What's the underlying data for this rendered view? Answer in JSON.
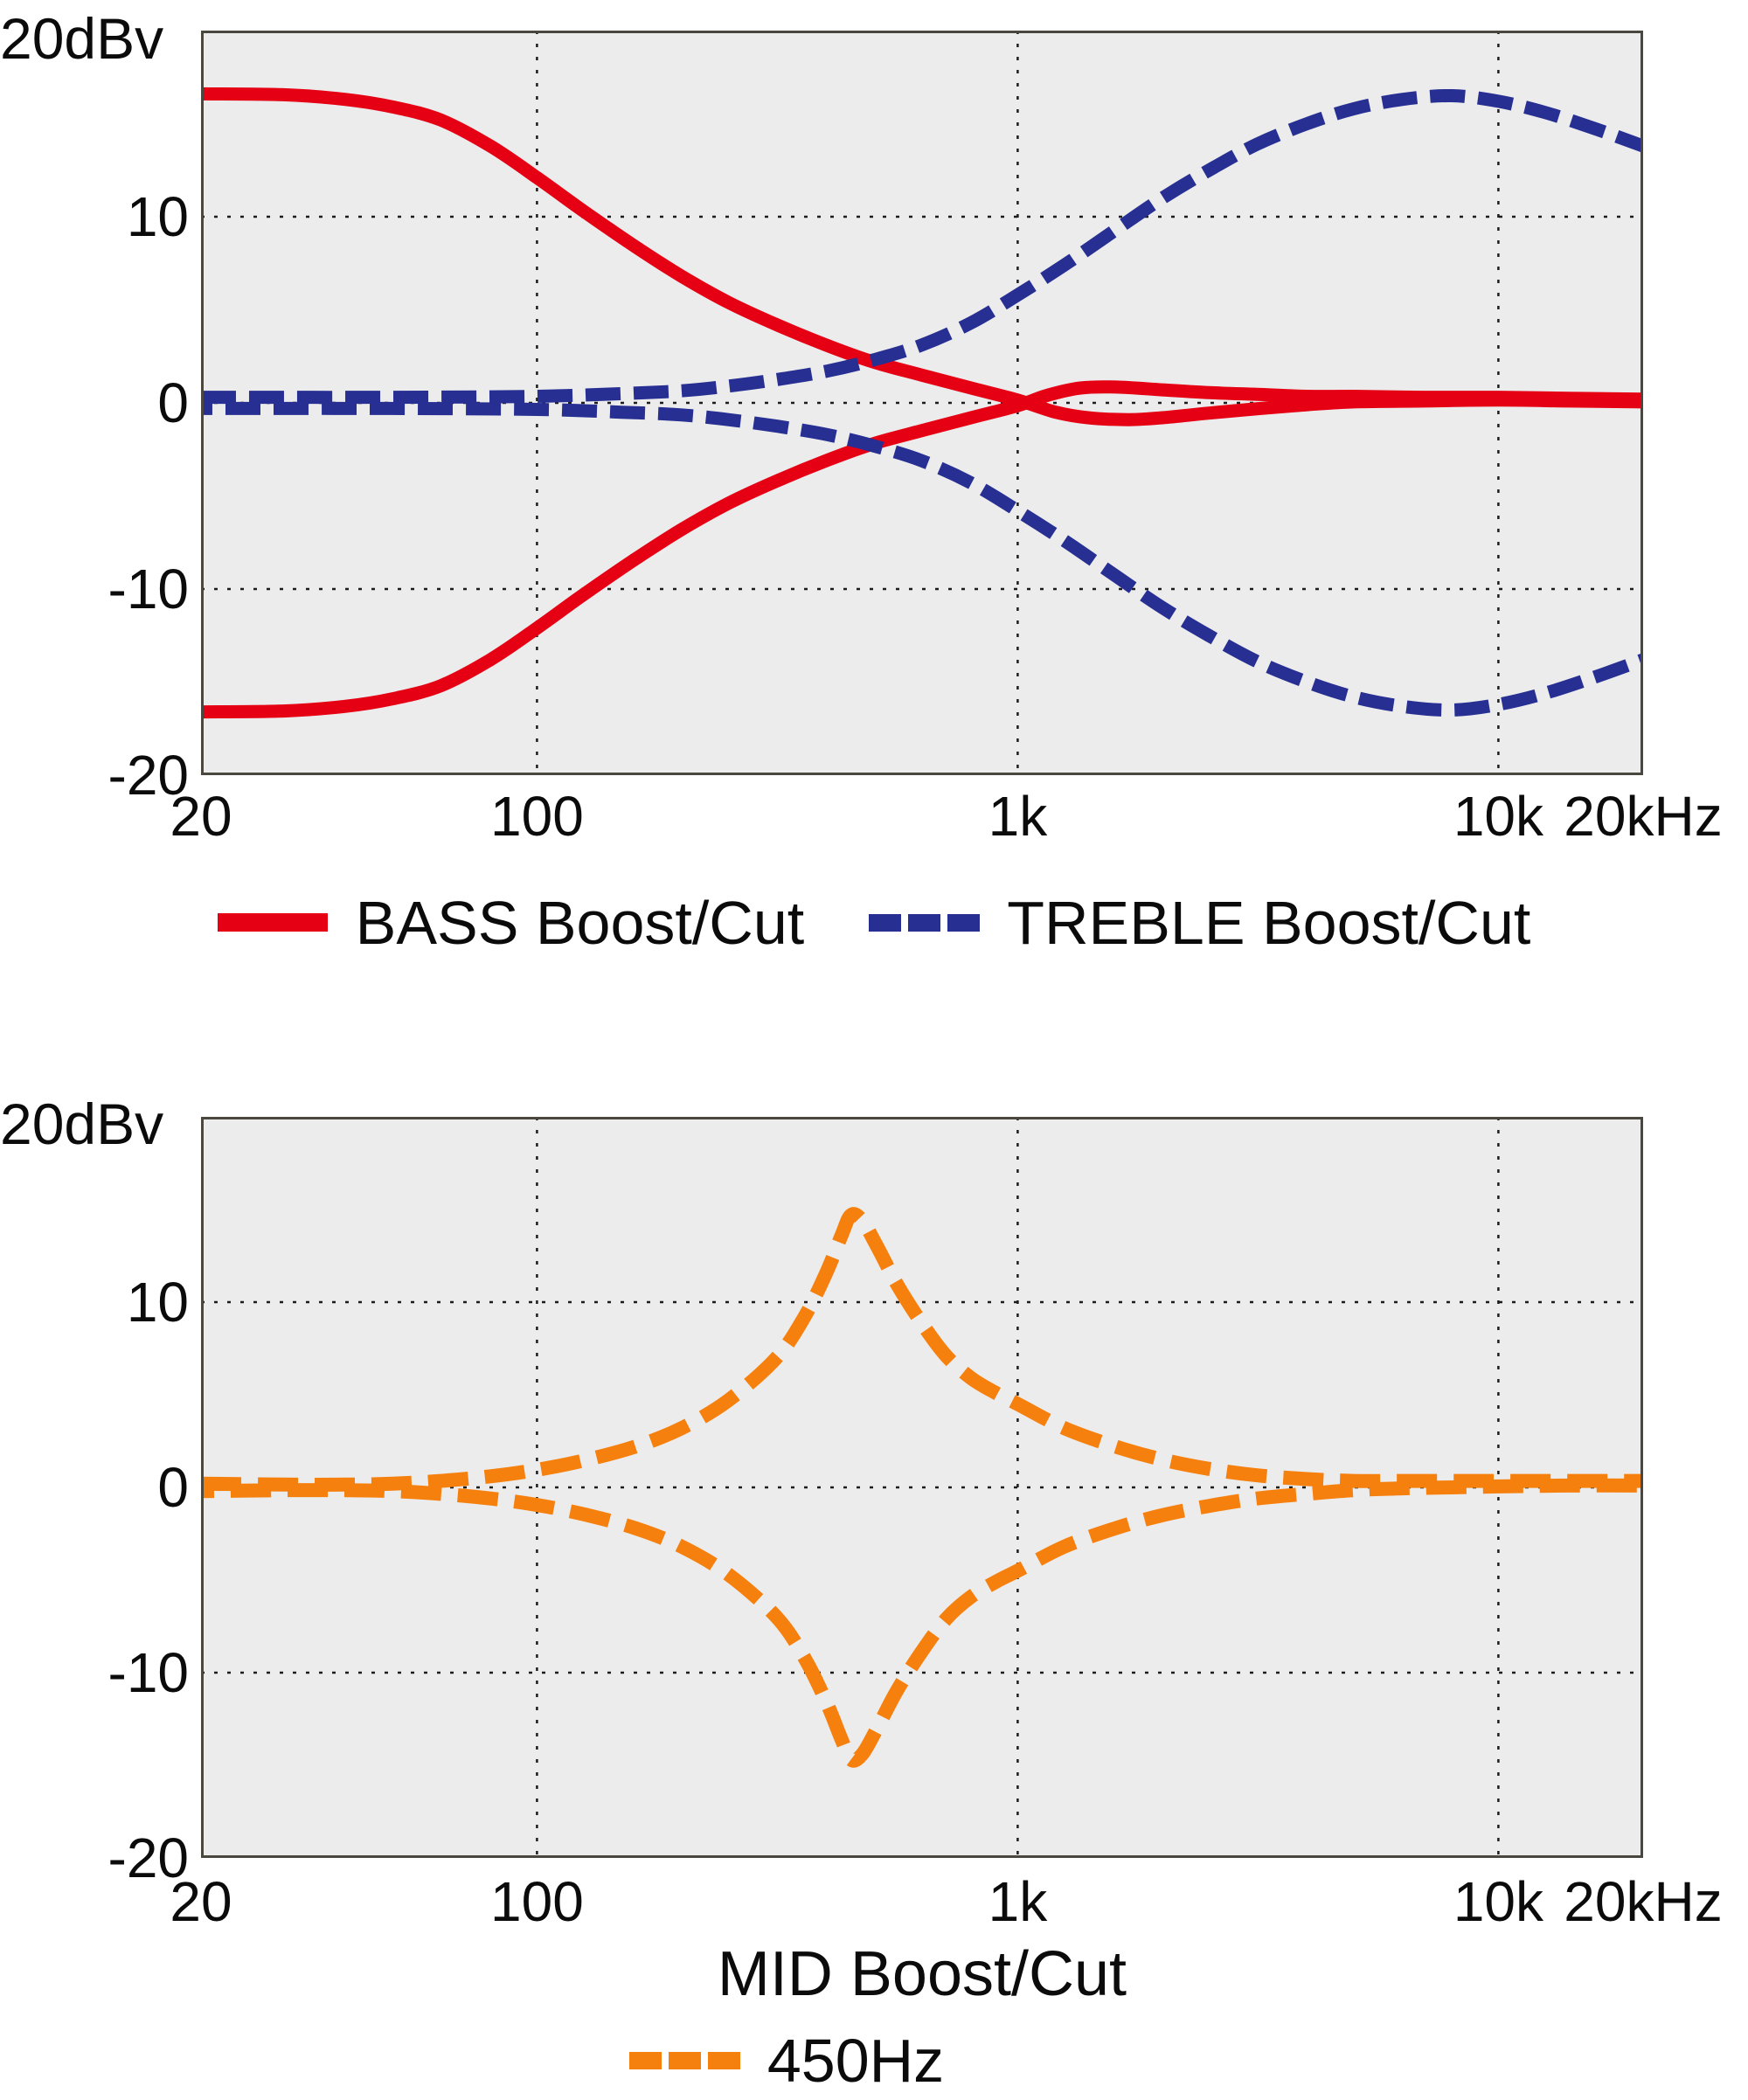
{
  "chart_data": [
    {
      "type": "line",
      "name": "bass-treble-response",
      "x_scale": "log",
      "x_range": [
        20,
        20000
      ],
      "y_range": [
        -20,
        20
      ],
      "y_unit": "dBv",
      "y_axis_top_label": "20dBv",
      "grid": true,
      "legend_position": "bottom",
      "colors": {
        "plot_bg": "#ececed",
        "border": "#4a473e",
        "grid": "#1c1c1c"
      },
      "y_ticks": [
        {
          "label": "10",
          "db": 10,
          "grid": true
        },
        {
          "label": "0",
          "db": 0,
          "grid": true
        },
        {
          "label": "-10",
          "db": -10,
          "grid": true
        },
        {
          "label": "-20",
          "db": -20,
          "grid": false
        }
      ],
      "x_ticks": [
        {
          "label": "20",
          "f": 20,
          "grid": false
        },
        {
          "label": "100",
          "f": 100,
          "grid": true
        },
        {
          "label": "1k",
          "f": 1000,
          "grid": true
        },
        {
          "label": "10k",
          "f": 10000,
          "grid": true
        },
        {
          "label": "20kHz",
          "f": 20000,
          "grid": false
        }
      ],
      "series": [
        {
          "name": "BASS Boost",
          "color": "#e60014",
          "style": "solid",
          "line_width": 15,
          "points": [
            [
              20,
              16.6
            ],
            [
              30,
              16.55
            ],
            [
              40,
              16.3
            ],
            [
              50,
              15.9
            ],
            [
              63,
              15.2
            ],
            [
              80,
              13.8
            ],
            [
              100,
              12.1
            ],
            [
              125,
              10.3
            ],
            [
              160,
              8.4
            ],
            [
              200,
              6.8
            ],
            [
              250,
              5.4
            ],
            [
              315,
              4.2
            ],
            [
              400,
              3.1
            ],
            [
              500,
              2.2
            ],
            [
              630,
              1.5
            ],
            [
              800,
              0.8
            ],
            [
              1000,
              0.15
            ],
            [
              1200,
              -0.5
            ],
            [
              1400,
              -0.8
            ],
            [
              1700,
              -0.9
            ],
            [
              2000,
              -0.8
            ],
            [
              2500,
              -0.55
            ],
            [
              3200,
              -0.3
            ],
            [
              4000,
              -0.1
            ],
            [
              5000,
              0.05
            ],
            [
              7000,
              0.1
            ],
            [
              10000,
              0.15
            ],
            [
              14000,
              0.1
            ],
            [
              20000,
              0.05
            ]
          ]
        },
        {
          "name": "BASS Cut",
          "color": "#e60014",
          "style": "solid",
          "line_width": 15,
          "points": [
            [
              20,
              -16.6
            ],
            [
              30,
              -16.55
            ],
            [
              40,
              -16.3
            ],
            [
              50,
              -15.9
            ],
            [
              63,
              -15.2
            ],
            [
              80,
              -13.8
            ],
            [
              100,
              -12.1
            ],
            [
              125,
              -10.3
            ],
            [
              160,
              -8.4
            ],
            [
              200,
              -6.8
            ],
            [
              250,
              -5.4
            ],
            [
              315,
              -4.2
            ],
            [
              400,
              -3.1
            ],
            [
              500,
              -2.2
            ],
            [
              630,
              -1.5
            ],
            [
              800,
              -0.8
            ],
            [
              1000,
              -0.15
            ],
            [
              1150,
              0.4
            ],
            [
              1350,
              0.8
            ],
            [
              1600,
              0.85
            ],
            [
              2000,
              0.7
            ],
            [
              2500,
              0.55
            ],
            [
              3200,
              0.45
            ],
            [
              4000,
              0.35
            ],
            [
              5000,
              0.35
            ],
            [
              7000,
              0.3
            ],
            [
              10000,
              0.3
            ],
            [
              14000,
              0.25
            ],
            [
              20000,
              0.2
            ]
          ]
        },
        {
          "name": "TREBLE Boost",
          "color": "#272f93",
          "style": "dashed",
          "line_width": 15,
          "dash": [
            40,
            15
          ],
          "dash_offset": 0,
          "points": [
            [
              20,
              0.3
            ],
            [
              50,
              0.3
            ],
            [
              100,
              0.35
            ],
            [
              150,
              0.5
            ],
            [
              200,
              0.65
            ],
            [
              250,
              0.9
            ],
            [
              315,
              1.25
            ],
            [
              400,
              1.7
            ],
            [
              500,
              2.3
            ],
            [
              630,
              3.1
            ],
            [
              800,
              4.3
            ],
            [
              1000,
              5.8
            ],
            [
              1250,
              7.4
            ],
            [
              1600,
              9.3
            ],
            [
              2000,
              11.0
            ],
            [
              2500,
              12.5
            ],
            [
              3150,
              13.9
            ],
            [
              4000,
              15.0
            ],
            [
              5000,
              15.8
            ],
            [
              6300,
              16.3
            ],
            [
              8000,
              16.5
            ],
            [
              10000,
              16.2
            ],
            [
              12500,
              15.6
            ],
            [
              16000,
              14.7
            ],
            [
              20000,
              13.8
            ]
          ]
        },
        {
          "name": "TREBLE Cut",
          "color": "#272f93",
          "style": "dashed",
          "line_width": 15,
          "dash": [
            40,
            15
          ],
          "dash_offset": 27,
          "points": [
            [
              20,
              -0.3
            ],
            [
              50,
              -0.3
            ],
            [
              100,
              -0.35
            ],
            [
              150,
              -0.5
            ],
            [
              200,
              -0.65
            ],
            [
              250,
              -0.9
            ],
            [
              315,
              -1.25
            ],
            [
              400,
              -1.7
            ],
            [
              500,
              -2.3
            ],
            [
              630,
              -3.1
            ],
            [
              800,
              -4.3
            ],
            [
              1000,
              -5.8
            ],
            [
              1250,
              -7.4
            ],
            [
              1600,
              -9.3
            ],
            [
              2000,
              -11.0
            ],
            [
              2500,
              -12.5
            ],
            [
              3150,
              -13.9
            ],
            [
              4000,
              -15.0
            ],
            [
              5000,
              -15.8
            ],
            [
              6300,
              -16.3
            ],
            [
              8000,
              -16.5
            ],
            [
              10000,
              -16.2
            ],
            [
              12500,
              -15.6
            ],
            [
              16000,
              -14.7
            ],
            [
              20000,
              -13.8
            ]
          ]
        }
      ],
      "legend": [
        {
          "label": "BASS Boost/Cut",
          "color": "#e60014",
          "style": "solid"
        },
        {
          "label": "TREBLE Boost/Cut",
          "color": "#272f93",
          "style": "dashed"
        }
      ]
    },
    {
      "type": "line",
      "name": "mid-response",
      "x_scale": "log",
      "x_range": [
        20,
        20000
      ],
      "y_range": [
        -20,
        20
      ],
      "y_unit": "dBv",
      "y_axis_top_label": "20dBv",
      "x_axis_title": "MID Boost/Cut",
      "grid": true,
      "legend_position": "bottom",
      "colors": {
        "plot_bg": "#ececed",
        "border": "#4a473e",
        "grid": "#1c1c1c"
      },
      "y_ticks": [
        {
          "label": "10",
          "db": 10,
          "grid": true
        },
        {
          "label": "0",
          "db": 0,
          "grid": true
        },
        {
          "label": "-10",
          "db": -10,
          "grid": true
        },
        {
          "label": "-20",
          "db": -20,
          "grid": false
        }
      ],
      "x_ticks": [
        {
          "label": "20",
          "f": 20,
          "grid": false
        },
        {
          "label": "100",
          "f": 100,
          "grid": true
        },
        {
          "label": "1k",
          "f": 1000,
          "grid": true
        },
        {
          "label": "10k",
          "f": 10000,
          "grid": true
        },
        {
          "label": "20kHz",
          "f": 20000,
          "grid": false
        }
      ],
      "series": [
        {
          "name": "MID Boost 450Hz",
          "color": "#f6800e",
          "style": "dashed",
          "line_width": 16,
          "dash": [
            46,
            19
          ],
          "dash_offset": 0,
          "points": [
            [
              20,
              0.2
            ],
            [
              30,
              0.15
            ],
            [
              40,
              0.15
            ],
            [
              50,
              0.2
            ],
            [
              63,
              0.35
            ],
            [
              80,
              0.6
            ],
            [
              100,
              0.95
            ],
            [
              125,
              1.45
            ],
            [
              160,
              2.2
            ],
            [
              200,
              3.2
            ],
            [
              250,
              4.7
            ],
            [
              315,
              7.0
            ],
            [
              360,
              9.2
            ],
            [
              400,
              11.6
            ],
            [
              430,
              13.6
            ],
            [
              450,
              14.7
            ],
            [
              475,
              14.4
            ],
            [
              510,
              13.0
            ],
            [
              560,
              11.0
            ],
            [
              630,
              8.9
            ],
            [
              710,
              7.1
            ],
            [
              800,
              5.9
            ],
            [
              900,
              5.1
            ],
            [
              1000,
              4.5
            ],
            [
              1250,
              3.2
            ],
            [
              1600,
              2.2
            ],
            [
              2000,
              1.5
            ],
            [
              2500,
              1.0
            ],
            [
              3150,
              0.65
            ],
            [
              4000,
              0.45
            ],
            [
              5000,
              0.35
            ],
            [
              6300,
              0.35
            ],
            [
              8000,
              0.35
            ],
            [
              10000,
              0.35
            ],
            [
              14000,
              0.35
            ],
            [
              20000,
              0.35
            ]
          ]
        },
        {
          "name": "MID Cut 450Hz",
          "color": "#f6800e",
          "style": "dashed",
          "line_width": 16,
          "dash": [
            46,
            19
          ],
          "dash_offset": 31,
          "points": [
            [
              20,
              -0.2
            ],
            [
              30,
              -0.15
            ],
            [
              40,
              -0.15
            ],
            [
              50,
              -0.2
            ],
            [
              63,
              -0.35
            ],
            [
              80,
              -0.6
            ],
            [
              100,
              -0.95
            ],
            [
              125,
              -1.45
            ],
            [
              160,
              -2.2
            ],
            [
              200,
              -3.2
            ],
            [
              250,
              -4.7
            ],
            [
              315,
              -7.0
            ],
            [
              360,
              -9.2
            ],
            [
              400,
              -11.6
            ],
            [
              430,
              -13.6
            ],
            [
              450,
              -14.7
            ],
            [
              475,
              -14.4
            ],
            [
              510,
              -13.0
            ],
            [
              560,
              -11.0
            ],
            [
              630,
              -8.9
            ],
            [
              710,
              -7.1
            ],
            [
              800,
              -5.9
            ],
            [
              900,
              -5.1
            ],
            [
              1000,
              -4.5
            ],
            [
              1250,
              -3.2
            ],
            [
              1600,
              -2.2
            ],
            [
              2000,
              -1.5
            ],
            [
              2500,
              -1.0
            ],
            [
              3150,
              -0.6
            ],
            [
              4000,
              -0.35
            ],
            [
              5000,
              -0.15
            ],
            [
              6300,
              -0.05
            ],
            [
              8000,
              0.0
            ],
            [
              10000,
              0.05
            ],
            [
              14000,
              0.1
            ],
            [
              20000,
              0.1
            ]
          ]
        }
      ],
      "legend": [
        {
          "label": "450Hz",
          "color": "#f6800e",
          "style": "dashed"
        }
      ]
    }
  ]
}
